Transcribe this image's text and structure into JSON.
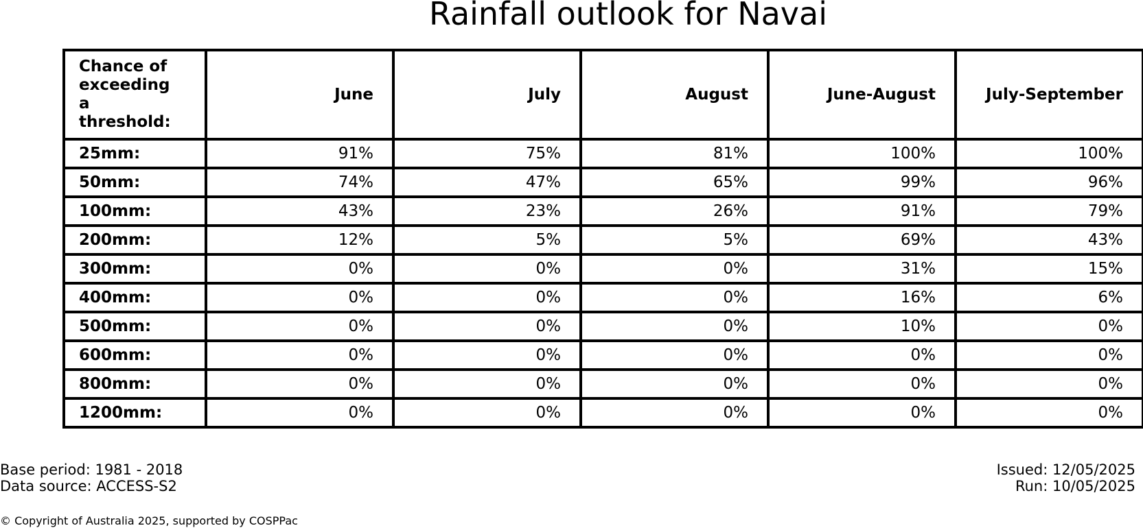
{
  "title": "Rainfall outlook for Navai",
  "table": {
    "corner_lines": [
      "Chance of",
      "exceeding",
      "a threshold:"
    ],
    "columns": [
      "June",
      "July",
      "August",
      "June-August",
      "July-September"
    ],
    "rows": [
      {
        "threshold": "25mm:",
        "values": [
          "91%",
          "75%",
          "81%",
          "100%",
          "100%"
        ]
      },
      {
        "threshold": "50mm:",
        "values": [
          "74%",
          "47%",
          "65%",
          "99%",
          "96%"
        ]
      },
      {
        "threshold": "100mm:",
        "values": [
          "43%",
          "23%",
          "26%",
          "91%",
          "79%"
        ]
      },
      {
        "threshold": "200mm:",
        "values": [
          "12%",
          "5%",
          "5%",
          "69%",
          "43%"
        ]
      },
      {
        "threshold": "300mm:",
        "values": [
          "0%",
          "0%",
          "0%",
          "31%",
          "15%"
        ]
      },
      {
        "threshold": "400mm:",
        "values": [
          "0%",
          "0%",
          "0%",
          "16%",
          "6%"
        ]
      },
      {
        "threshold": "500mm:",
        "values": [
          "0%",
          "0%",
          "0%",
          "10%",
          "0%"
        ]
      },
      {
        "threshold": "600mm:",
        "values": [
          "0%",
          "0%",
          "0%",
          "0%",
          "0%"
        ]
      },
      {
        "threshold": "800mm:",
        "values": [
          "0%",
          "0%",
          "0%",
          "0%",
          "0%"
        ]
      },
      {
        "threshold": "1200mm:",
        "values": [
          "0%",
          "0%",
          "0%",
          "0%",
          "0%"
        ]
      }
    ]
  },
  "footer": {
    "base_period": "Base period: 1981 - 2018",
    "data_source": "Data source: ACCESS-S2",
    "issued": "Issued: 12/05/2025",
    "run": "Run: 10/05/2025",
    "copyright": "© Copyright of Australia 2025, supported by COSPPac"
  }
}
